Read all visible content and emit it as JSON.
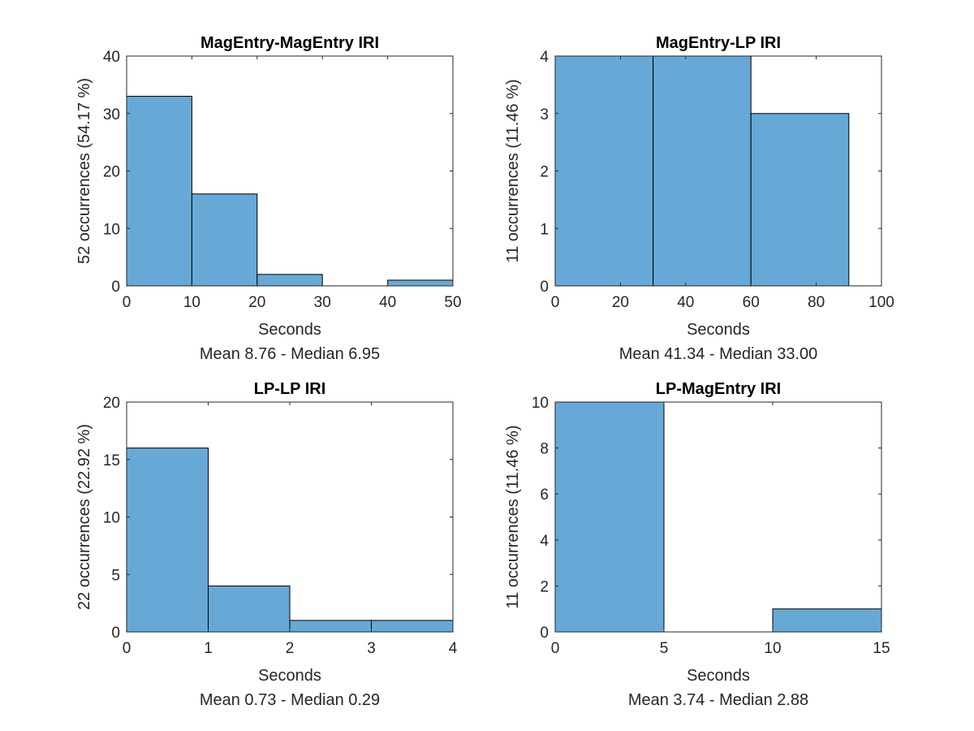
{
  "chart_data": [
    {
      "type": "bar",
      "id": "magentry-magentry",
      "title": "MagEntry-MagEntry IRI",
      "xlabel": "Seconds",
      "xlabel2": "Mean 8.76 - Median 6.95",
      "ylabel": "52 occurrences (54.17 %)",
      "xlim": [
        0,
        50
      ],
      "ylim": [
        0,
        40
      ],
      "xticks": [
        0,
        10,
        20,
        30,
        40,
        50
      ],
      "yticks": [
        0,
        10,
        20,
        30,
        40
      ],
      "bin_edges": [
        0,
        10,
        20,
        30,
        40,
        50
      ],
      "values": [
        33,
        16,
        2,
        0,
        1
      ]
    },
    {
      "type": "bar",
      "id": "magentry-lp",
      "title": "MagEntry-LP IRI",
      "xlabel": "Seconds",
      "xlabel2": "Mean 41.34 - Median 33.00",
      "ylabel": "11 occurrences (11.46 %)",
      "xlim": [
        0,
        100
      ],
      "ylim": [
        0,
        4
      ],
      "xticks": [
        0,
        20,
        40,
        60,
        80,
        100
      ],
      "yticks": [
        0,
        1,
        2,
        3,
        4
      ],
      "bin_edges": [
        0,
        30,
        60,
        90
      ],
      "values": [
        4,
        4,
        3
      ]
    },
    {
      "type": "bar",
      "id": "lp-lp",
      "title": "LP-LP IRI",
      "xlabel": "Seconds",
      "xlabel2": "Mean 0.73 - Median 0.29",
      "ylabel": "22 occurrences (22.92 %)",
      "xlim": [
        0,
        4
      ],
      "ylim": [
        0,
        20
      ],
      "xticks": [
        0,
        1,
        2,
        3,
        4
      ],
      "yticks": [
        0,
        5,
        10,
        15,
        20
      ],
      "bin_edges": [
        0,
        1,
        2,
        3,
        4
      ],
      "values": [
        16,
        4,
        1,
        1
      ]
    },
    {
      "type": "bar",
      "id": "lp-magentry",
      "title": "LP-MagEntry IRI",
      "xlabel": "Seconds",
      "xlabel2": "Mean 3.74 - Median 2.88",
      "ylabel": "11 occurrences (11.46 %)",
      "xlim": [
        0,
        15
      ],
      "ylim": [
        0,
        10
      ],
      "xticks": [
        0,
        5,
        10,
        15
      ],
      "yticks": [
        0,
        2,
        4,
        6,
        8,
        10
      ],
      "bin_edges": [
        0,
        5,
        10,
        15
      ],
      "values": [
        10,
        0,
        1
      ]
    }
  ],
  "colors": {
    "bar_fill": "#67a9d6",
    "bar_edge": "#000000",
    "axis": "#262626",
    "background": "#ffffff"
  }
}
